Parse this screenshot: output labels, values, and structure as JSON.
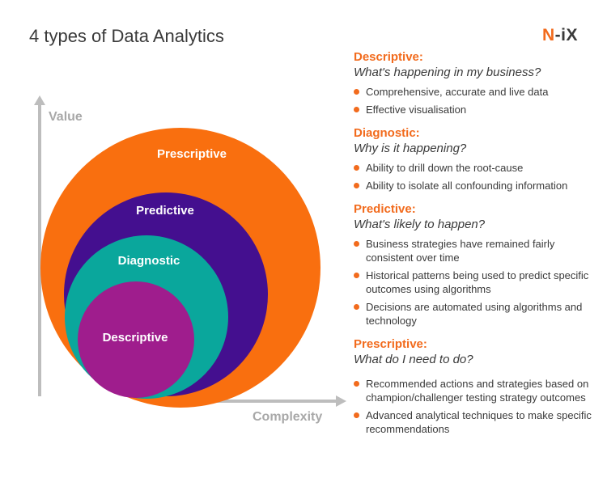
{
  "header": {
    "title": "4 types of Data Analytics"
  },
  "logo": {
    "part1": "N",
    "dash": "-",
    "part2": "iX"
  },
  "axes": {
    "y_label": "Value",
    "x_label": "Complexity"
  },
  "circles": [
    {
      "label": "Prescriptive",
      "color": "#f96f0f"
    },
    {
      "label": "Predictive",
      "color": "#440f8f"
    },
    {
      "label": "Diagnostic",
      "color": "#0aa79c"
    },
    {
      "label": "Descriptive",
      "color": "#9f1d8d"
    }
  ],
  "sections": [
    {
      "title": "Descriptive:",
      "question": "What's happening in my business?",
      "bullets": [
        "Comprehensive, accurate and live data",
        "Effective visualisation"
      ]
    },
    {
      "title": "Diagnostic:",
      "question": "Why is it happening?",
      "bullets": [
        "Ability to drill down the root-cause",
        "Ability to isolate  all confounding information"
      ]
    },
    {
      "title": "Predictive:",
      "question": "What's likely to happen?",
      "bullets": [
        "Business strategies have remained fairly consistent over time",
        "Historical patterns being used to predict specific outcomes using algorithms",
        "Decisions are automated using algorithms and  technology"
      ]
    },
    {
      "title": "Prescriptive:",
      "question": "What do I need to do?",
      "bullets": [
        "Recommended actions and strategies based on champion/challenger testing strategy outcomes",
        "Advanced analytical techniques to make specific recommendations"
      ]
    }
  ],
  "colors": {
    "accent": "#f26b1d",
    "text": "#3a3a3a",
    "axis": "#bdbdbd"
  }
}
